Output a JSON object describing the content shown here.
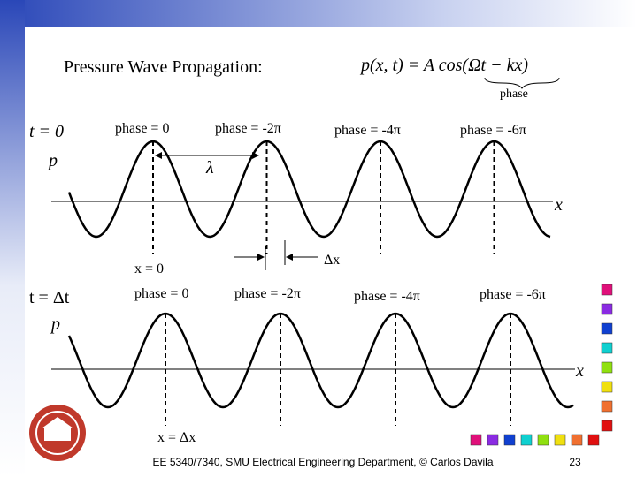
{
  "title": "Pressure Wave Propagation:",
  "formula": "p(x, t) = A cos(Ωt − kx)",
  "phase_label": "phase",
  "top_panel": {
    "time_label": "t = 0",
    "axis_p": "p",
    "axis_x": "x",
    "phases": [
      "phase = 0",
      "phase = -2π",
      "phase = -4π",
      "phase = -6π"
    ],
    "wavelength": "λ"
  },
  "middle": {
    "x_zero": "x = 0",
    "delta_x": "Δx"
  },
  "bottom_panel": {
    "time_label": "t = Δt",
    "axis_p": "p",
    "axis_x": "x",
    "phases": [
      "phase = 0",
      "phase = -2π",
      "phase = -4π",
      "phase = -6π"
    ],
    "x_shift": "x = Δx"
  },
  "footer": {
    "text": "EE 5340/7340, SMU Electrical Engineering Department, © Carlos Davila",
    "page": "23"
  }
}
